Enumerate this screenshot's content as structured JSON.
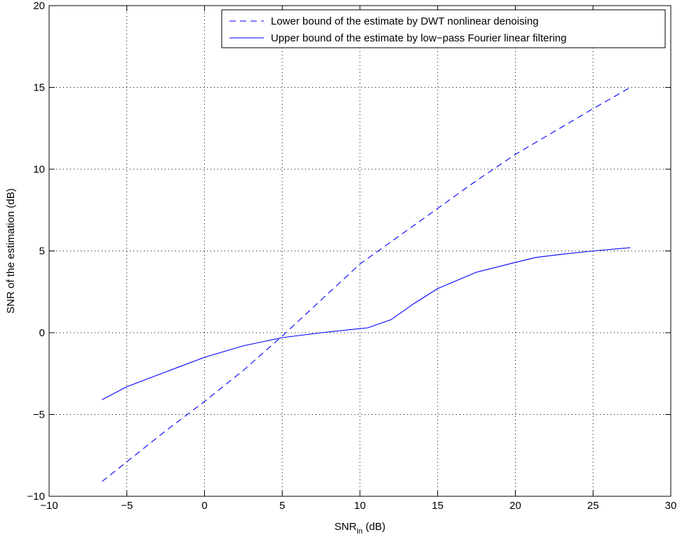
{
  "chart_data": {
    "type": "line",
    "title": "",
    "xlabel": {
      "main": "SNR",
      "sub": "in",
      "unit": " (dB)"
    },
    "ylabel": "SNR of the estimation (dB)",
    "xlim": [
      -10,
      30
    ],
    "ylim": [
      -10,
      20
    ],
    "xticks": [
      -10,
      -5,
      0,
      5,
      10,
      15,
      20,
      25,
      30
    ],
    "yticks": [
      -10,
      -5,
      0,
      5,
      10,
      15,
      20
    ],
    "xtick_labels": [
      "−10",
      "−5",
      "0",
      "5",
      "10",
      "15",
      "20",
      "25",
      "30"
    ],
    "ytick_labels": [
      "−10",
      "−5",
      "0",
      "5",
      "10",
      "15",
      "20"
    ],
    "grid": true,
    "legend_position": "top-right",
    "series": [
      {
        "name": "Lower bound of the estimate by DWT nonlinear denoising",
        "style": "dashed",
        "color": "#0000ff",
        "x": [
          -6.6,
          -2.5,
          0,
          2.5,
          5,
          7.5,
          10,
          12.5,
          15,
          17.5,
          20,
          22.5,
          25,
          27.4
        ],
        "y": [
          -9.1,
          -6.0,
          -4.2,
          -2.3,
          -0.2,
          2.0,
          4.2,
          5.9,
          7.6,
          9.3,
          10.9,
          12.3,
          13.7,
          15.0
        ]
      },
      {
        "name": "Upper bound of the estimate by low−pass Fourier linear filtering",
        "style": "solid",
        "color": "#0000ff",
        "x": [
          -6.6,
          -5.0,
          -2.5,
          0,
          2.5,
          5.0,
          7.5,
          10.5,
          12.0,
          13.5,
          15.0,
          17.5,
          20.0,
          21.3,
          23.0,
          25.0,
          27.4
        ],
        "y": [
          -4.1,
          -3.3,
          -2.4,
          -1.5,
          -0.8,
          -0.3,
          0.0,
          0.3,
          0.8,
          1.8,
          2.7,
          3.7,
          4.3,
          4.6,
          4.8,
          5.0,
          5.2
        ]
      }
    ]
  }
}
